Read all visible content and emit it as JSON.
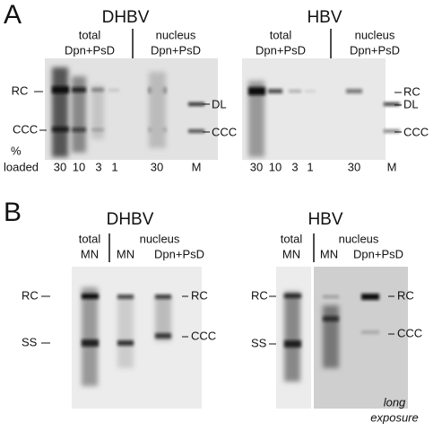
{
  "panels": [
    {
      "label": "A",
      "blots": [
        {
          "title": "DHBV",
          "groups": [
            [
              "total",
              "Dpn+PsD"
            ],
            [
              "nucleus",
              "Dpn+PsD"
            ]
          ],
          "left_markers": [
            "RC",
            "CCC"
          ],
          "right_markers": [
            "DL",
            "CCC"
          ],
          "lanes": [
            "30",
            "10",
            "3",
            "1",
            "30",
            "M"
          ],
          "lanes_caption": [
            "%",
            "loaded"
          ]
        },
        {
          "title": "HBV",
          "groups": [
            [
              "total",
              "Dpn+PsD"
            ],
            [
              "nucleus",
              "Dpn+PsD"
            ]
          ],
          "right_markers": [
            "RC",
            "DL",
            "CCC"
          ],
          "lanes": [
            "30",
            "10",
            "3",
            "1",
            "30",
            "M"
          ]
        }
      ]
    },
    {
      "label": "B",
      "blots": [
        {
          "title": "DHBV",
          "groups": [
            [
              "total",
              "MN"
            ],
            [
              "nucleus"
            ]
          ],
          "sub_lanes": [
            "MN",
            "Dpn+PsD"
          ],
          "left_markers": [
            "RC",
            "SS"
          ],
          "right_markers": [
            "RC",
            "CCC"
          ]
        },
        {
          "title": "HBV",
          "groups": [
            [
              "total",
              "MN"
            ],
            [
              "nucleus"
            ]
          ],
          "sub_lanes": [
            "MN",
            "Dpn+PsD"
          ],
          "left_markers": [
            "RC",
            "SS"
          ],
          "right_markers": [
            "RC",
            "CCC"
          ],
          "note": [
            "long",
            "exposure"
          ]
        }
      ]
    }
  ]
}
